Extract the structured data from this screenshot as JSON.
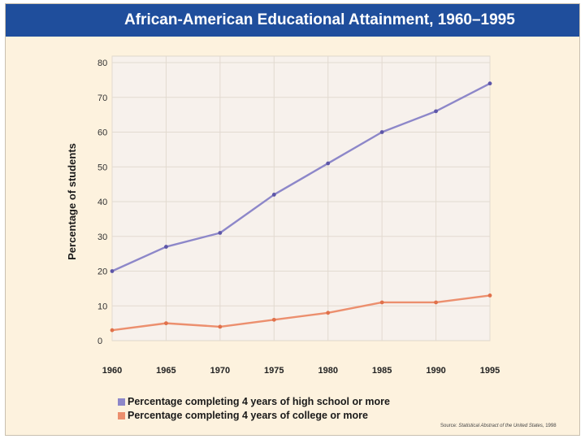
{
  "title": "African-American Educational Attainment, 1960–1995",
  "source": {
    "prefix": "Source: ",
    "italic": "Statistical Abstract of the United States",
    "suffix": ", 1998"
  },
  "colors": {
    "title_bar": "#1f4e9c",
    "background": "#fdf2de",
    "plot_area": "#f7f1ec",
    "high_school": "#8d87c9",
    "college": "#ec8f6e"
  },
  "chart_data": {
    "type": "line",
    "title": "African-American Educational Attainment, 1960–1995",
    "xlabel": "",
    "ylabel": "Percentage of students",
    "x": [
      "1960",
      "1965",
      "1970",
      "1975",
      "1980",
      "1985",
      "1990",
      "1995"
    ],
    "y_ticks": [
      "0",
      "10",
      "20",
      "30",
      "40",
      "50",
      "60",
      "70",
      "80"
    ],
    "ylim": [
      0,
      80
    ],
    "grid": true,
    "legend_position": "bottom",
    "series": [
      {
        "name": "Percentage completing 4 years of high school or more",
        "color": "#8d87c9",
        "values": [
          20,
          27,
          31,
          42,
          51,
          60,
          66,
          74
        ]
      },
      {
        "name": "Percentage completing 4 years of college or more",
        "color": "#ec8f6e",
        "values": [
          3,
          5,
          4,
          6,
          8,
          11,
          11,
          13
        ]
      }
    ]
  }
}
